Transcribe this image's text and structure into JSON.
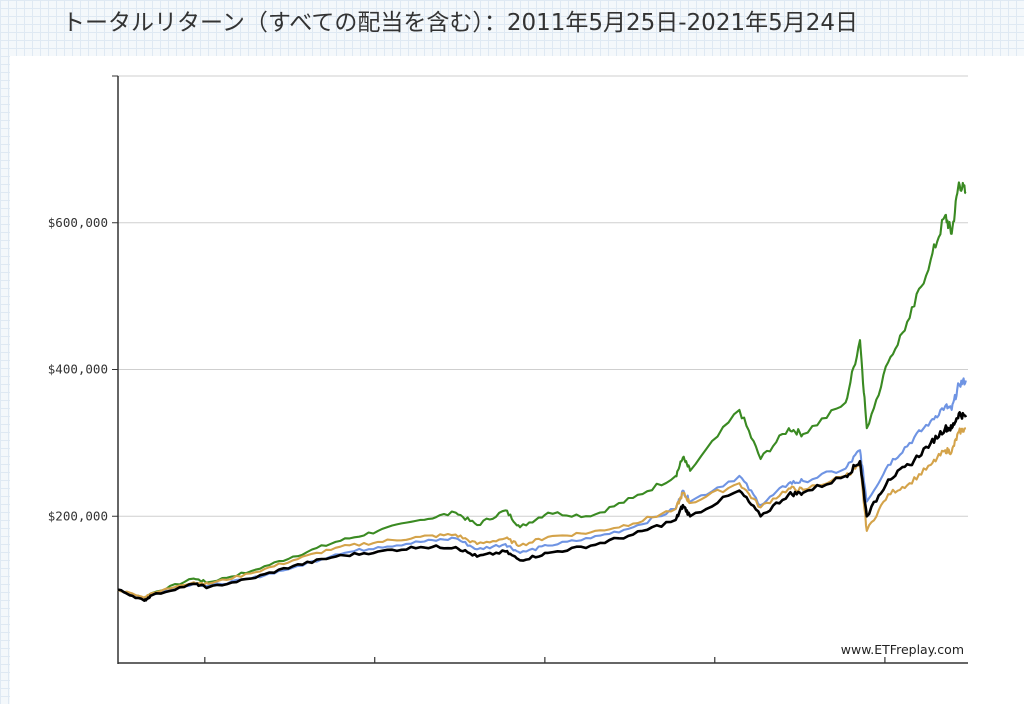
{
  "page": {
    "title": "トータルリターン（すべての配当を含む）：2011年5月25日-2021年5月24日"
  },
  "watermark": "www.ETFreplay.com",
  "chart_data": {
    "type": "line",
    "title": "トータルリターン（すべての配当を含む）：2011年5月25日-2021年5月24日",
    "xlabel": "",
    "ylabel": "",
    "x_range": [
      "2011-05-25",
      "2021-05-24"
    ],
    "ylim": [
      0,
      800000
    ],
    "y_ticks": [
      200000,
      400000,
      600000
    ],
    "y_tick_labels": [
      "$200,000",
      "$400,000",
      "$600,000"
    ],
    "x_tick_labels": [],
    "grid": "horizontal",
    "series": [
      {
        "color": "#3a8a22",
        "x": [
          "2011-05",
          "2011-09",
          "2011-10",
          "2012-04",
          "2012-06",
          "2012-12",
          "2013-06",
          "2013-12",
          "2014-06",
          "2014-12",
          "2015-05",
          "2015-08",
          "2015-12",
          "2016-02",
          "2016-06",
          "2016-12",
          "2017-06",
          "2017-12",
          "2018-01",
          "2018-02",
          "2018-09",
          "2018-12",
          "2019-04",
          "2019-06",
          "2019-12",
          "2020-02",
          "2020-03",
          "2020-06",
          "2020-09",
          "2020-12",
          "2021-02",
          "2021-03",
          "2021-04",
          "2021-05"
        ],
        "y": [
          100000,
          88000,
          95000,
          115000,
          110000,
          125000,
          145000,
          165000,
          180000,
          195000,
          205000,
          188000,
          208000,
          185000,
          205000,
          200000,
          225000,
          255000,
          280000,
          262000,
          345000,
          278000,
          320000,
          312000,
          355000,
          440000,
          320000,
          410000,
          470000,
          550000,
          610000,
          585000,
          655000,
          640000
        ]
      },
      {
        "color": "#6f94e3",
        "x": [
          "2011-05",
          "2011-09",
          "2011-10",
          "2012-04",
          "2012-06",
          "2012-12",
          "2013-06",
          "2013-12",
          "2014-06",
          "2014-12",
          "2015-05",
          "2015-08",
          "2015-12",
          "2016-02",
          "2016-06",
          "2016-12",
          "2017-06",
          "2017-12",
          "2018-01",
          "2018-02",
          "2018-09",
          "2018-12",
          "2019-04",
          "2019-06",
          "2019-12",
          "2020-02",
          "2020-03",
          "2020-06",
          "2020-09",
          "2020-12",
          "2021-02",
          "2021-03",
          "2021-04",
          "2021-05"
        ],
        "y": [
          100000,
          87000,
          93000,
          108000,
          105000,
          115000,
          130000,
          148000,
          158000,
          165000,
          170000,
          155000,
          162000,
          150000,
          160000,
          170000,
          185000,
          210000,
          235000,
          220000,
          255000,
          215000,
          245000,
          248000,
          265000,
          290000,
          220000,
          270000,
          300000,
          330000,
          350000,
          345000,
          380000,
          385000
        ]
      },
      {
        "color": "#d4a34a",
        "x": [
          "2011-05",
          "2011-09",
          "2011-10",
          "2012-04",
          "2012-06",
          "2012-12",
          "2013-06",
          "2013-12",
          "2014-06",
          "2014-12",
          "2015-05",
          "2015-08",
          "2015-12",
          "2016-02",
          "2016-06",
          "2016-12",
          "2017-06",
          "2017-12",
          "2018-01",
          "2018-02",
          "2018-09",
          "2018-12",
          "2019-04",
          "2019-06",
          "2019-12",
          "2020-02",
          "2020-03",
          "2020-06",
          "2020-09",
          "2020-12",
          "2021-02",
          "2021-03",
          "2021-04",
          "2021-05"
        ],
        "y": [
          100000,
          89000,
          95000,
          110000,
          108000,
          122000,
          140000,
          157000,
          165000,
          172000,
          175000,
          162000,
          170000,
          160000,
          172000,
          178000,
          190000,
          210000,
          232000,
          218000,
          245000,
          212000,
          238000,
          236000,
          255000,
          270000,
          180000,
          230000,
          245000,
          270000,
          290000,
          288000,
          315000,
          320000
        ]
      },
      {
        "color": "#000000",
        "x": [
          "2011-05",
          "2011-09",
          "2011-10",
          "2012-04",
          "2012-06",
          "2012-12",
          "2013-06",
          "2013-12",
          "2014-06",
          "2014-12",
          "2015-05",
          "2015-08",
          "2015-12",
          "2016-02",
          "2016-06",
          "2016-12",
          "2017-06",
          "2017-12",
          "2018-01",
          "2018-02",
          "2018-09",
          "2018-12",
          "2019-04",
          "2019-06",
          "2019-12",
          "2020-02",
          "2020-03",
          "2020-06",
          "2020-09",
          "2020-12",
          "2021-02",
          "2021-03",
          "2021-04",
          "2021-05"
        ],
        "y": [
          100000,
          85000,
          92000,
          108000,
          103000,
          115000,
          132000,
          145000,
          152000,
          158000,
          158000,
          145000,
          152000,
          140000,
          150000,
          160000,
          175000,
          195000,
          215000,
          200000,
          235000,
          200000,
          230000,
          232000,
          255000,
          275000,
          200000,
          250000,
          270000,
          300000,
          320000,
          320000,
          340000,
          335000
        ]
      }
    ]
  }
}
